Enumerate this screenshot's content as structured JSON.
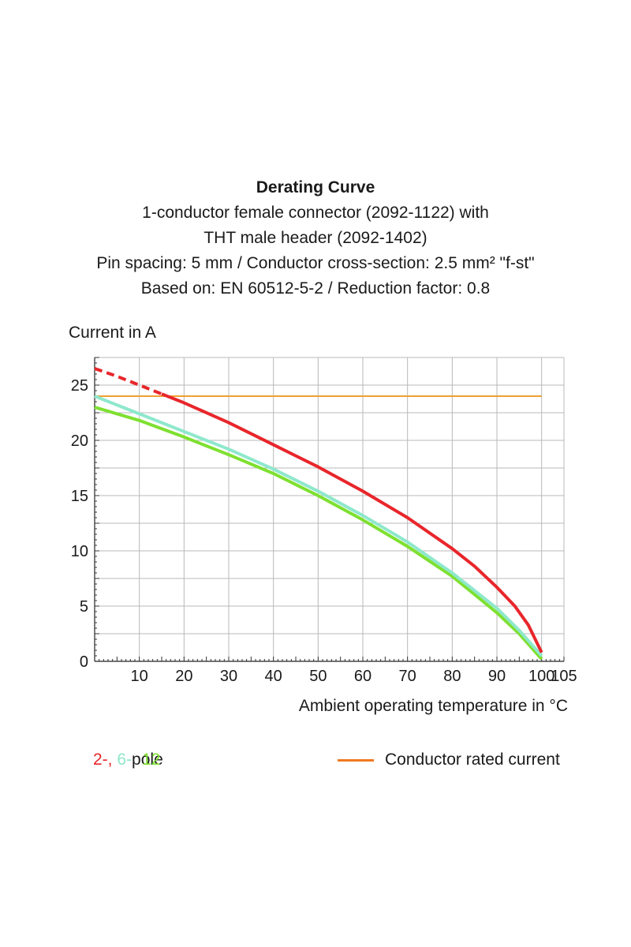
{
  "chart_data": {
    "type": "line",
    "title": "Derating Curve",
    "subtitle_lines": [
      "1-conductor female connector (2092-1122) with",
      "THT male header (2092-1402)",
      "Pin spacing: 5 mm / Conductor cross-section: 2.5 mm² \"f-st\"",
      "Based on: EN 60512-5-2 / Reduction factor: 0.8"
    ],
    "ylabel": "Current in A",
    "xlabel": "Ambient operating temperature in °C",
    "xlim": [
      0,
      105
    ],
    "ylim": [
      0,
      27.5
    ],
    "x_ticks": [
      10,
      20,
      30,
      40,
      50,
      60,
      70,
      80,
      90,
      100,
      105
    ],
    "y_ticks": [
      0,
      5,
      10,
      15,
      20,
      25
    ],
    "grid": true,
    "series": [
      {
        "name": "2-pole",
        "color": "#e8262b",
        "dashed_x": [
          0,
          15
        ],
        "x": [
          0,
          5,
          10,
          15,
          20,
          30,
          40,
          50,
          60,
          70,
          80,
          85,
          90,
          94,
          97,
          100
        ],
        "y": [
          26.5,
          25.8,
          25.0,
          24.2,
          23.4,
          21.6,
          19.6,
          17.6,
          15.4,
          13.0,
          10.2,
          8.6,
          6.7,
          5.0,
          3.3,
          0.8
        ]
      },
      {
        "name": "6-pole",
        "color": "#8ee8cc",
        "x": [
          0,
          10,
          20,
          30,
          40,
          50,
          60,
          70,
          80,
          90,
          95,
          100
        ],
        "y": [
          24.0,
          22.4,
          20.8,
          19.2,
          17.4,
          15.4,
          13.2,
          10.8,
          8.0,
          4.8,
          2.8,
          0.5
        ]
      },
      {
        "name": "12-pole",
        "color": "#7ee030",
        "x": [
          0,
          10,
          20,
          30,
          40,
          50,
          60,
          70,
          80,
          90,
          95,
          100
        ],
        "y": [
          23.0,
          21.8,
          20.3,
          18.7,
          17.0,
          15.0,
          12.8,
          10.4,
          7.7,
          4.4,
          2.5,
          0.2
        ]
      },
      {
        "name": "Conductor rated current",
        "color": "#f0a030",
        "x": [
          0,
          100
        ],
        "y": [
          24.0,
          24.0
        ]
      }
    ],
    "legend": {
      "pole_prefix_1": "2-,",
      "pole_prefix_2": "6-",
      "pole_prefix_3": "12",
      "pole_suffix": "pole",
      "rated_label": "Conductor rated current",
      "rated_color": "#f07820"
    }
  }
}
